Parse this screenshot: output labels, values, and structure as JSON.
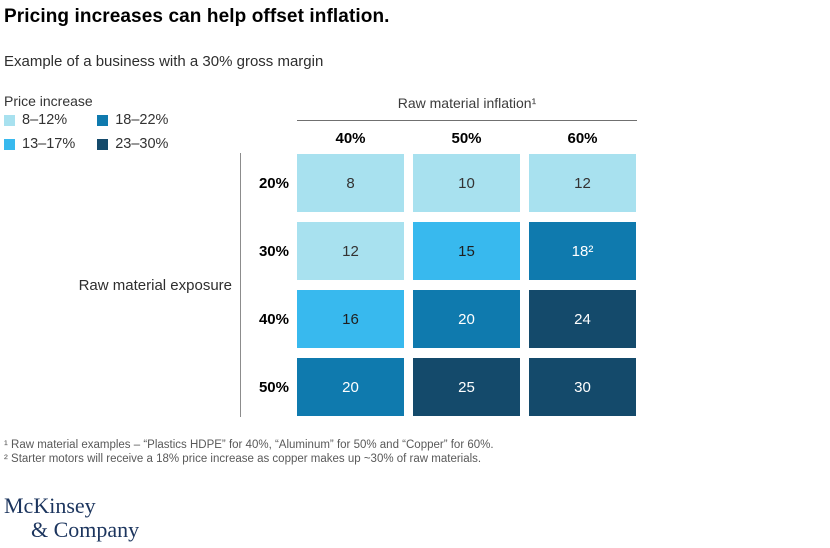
{
  "title": "Pricing increases can help offset inflation.",
  "subtitle": "Example of a business with a 30% gross margin",
  "legend": {
    "title": "Price increase",
    "items": [
      {
        "label": "8–12%",
        "color": "#a8e1ef"
      },
      {
        "label": "13–17%",
        "color": "#38b9ee"
      },
      {
        "label": "18–22%",
        "color": "#0f7aae"
      },
      {
        "label": "23–30%",
        "color": "#144a6b"
      }
    ]
  },
  "chart_data": {
    "type": "heatmap",
    "column_axis_title": "Raw material inflation¹",
    "columns": [
      "40%",
      "50%",
      "60%"
    ],
    "row_axis_title": "Raw material exposure",
    "rows": [
      "20%",
      "30%",
      "40%",
      "50%"
    ],
    "values": [
      [
        8,
        10,
        12
      ],
      [
        12,
        15,
        18
      ],
      [
        16,
        20,
        24
      ],
      [
        20,
        25,
        30
      ]
    ],
    "cell_labels": [
      [
        "8",
        "10",
        "12"
      ],
      [
        "12",
        "15",
        "18²"
      ],
      [
        "16",
        "20",
        "24"
      ],
      [
        "20",
        "25",
        "30"
      ]
    ],
    "cell_levels": [
      [
        0,
        0,
        0
      ],
      [
        0,
        1,
        2
      ],
      [
        1,
        2,
        3
      ],
      [
        2,
        3,
        3
      ]
    ],
    "level_colors": [
      "#a8e1ef",
      "#38b9ee",
      "#0f7aae",
      "#144a6b"
    ],
    "level_text_colors": [
      "#333333",
      "#1f1f1f",
      "#ffffff",
      "#ffffff"
    ],
    "legend_title": "Price increase",
    "legend_bins": [
      "8–12%",
      "13–17%",
      "18–22%",
      "23–30%"
    ],
    "legend_position": "top-left",
    "grid": false
  },
  "footnotes": [
    "¹ Raw material examples – “Plastics HDPE” for 40%, “Aluminum” for 50% and “Copper” for 60%.",
    "² Starter motors will receive a 18% price increase as copper makes up ~30% of raw materials."
  ],
  "logo": {
    "line1": "McKinsey",
    "line2": "& Company",
    "color": "#1c355e"
  }
}
